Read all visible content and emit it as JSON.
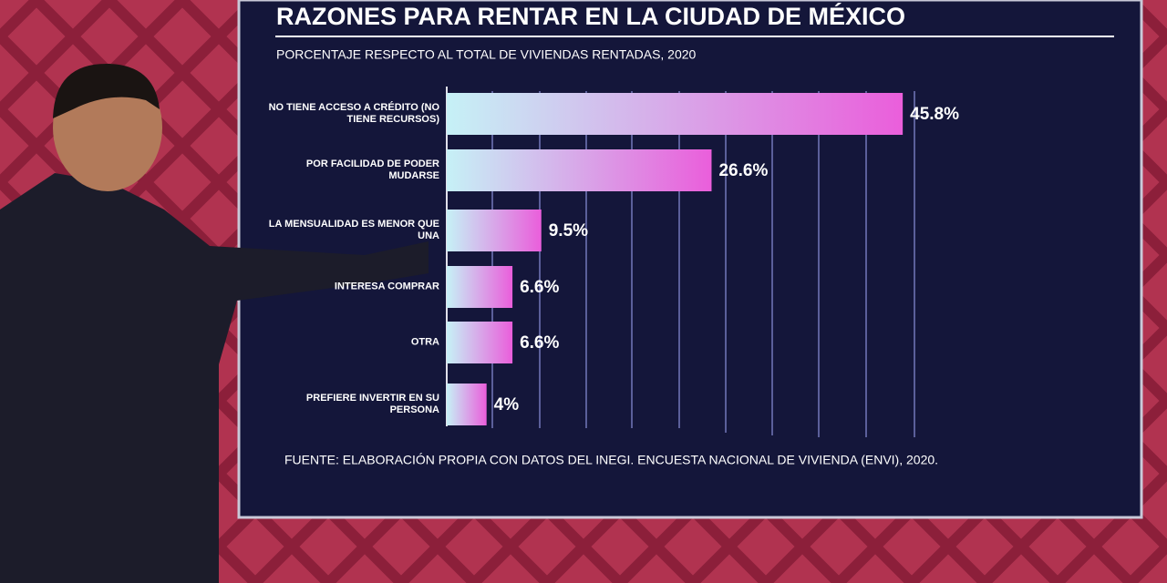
{
  "chart_data": {
    "type": "bar",
    "orientation": "horizontal",
    "title": "RAZONES PARA RENTAR EN LA CIUDAD DE MÉXICO",
    "subtitle": "PORCENTAJE RESPECTO AL TOTAL DE VIVIENDAS RENTADAS, 2020",
    "categories": [
      "NO TIENE ACCESO A CRÉDITO (NO TIENE RECURSOS)",
      "POR FACILIDAD DE PODER MUDARSE",
      "LA MENSUALIDAD ES MENOR QUE UNA",
      "INTERESA COMPRAR",
      "OTRA",
      "PREFIERE INVERTIR EN SU PERSONA"
    ],
    "values": [
      45.8,
      26.6,
      9.5,
      6.6,
      6.6,
      4
    ],
    "value_labels": [
      "45.8%",
      "26.6%",
      "9.5%",
      "6.6%",
      "6.6%",
      "4%"
    ],
    "xlim": [
      0,
      50
    ],
    "color": [
      "#c6f1f6",
      "#ea5edb"
    ],
    "source": "FUENTE: ELABORACIÓN PROPIA CON DATOS DEL INEGI. ENCUESTA NACIONAL DE VIVIENDA (ENVI), 2020."
  }
}
